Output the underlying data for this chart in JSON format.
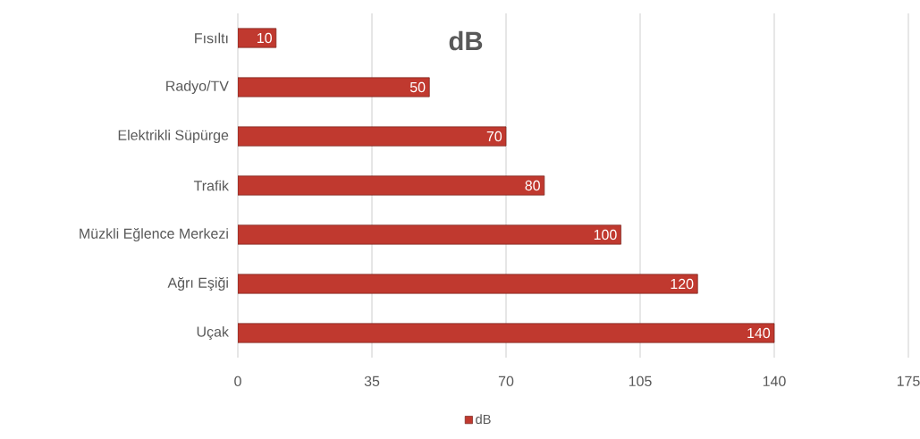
{
  "chart_data": {
    "type": "bar",
    "orientation": "horizontal",
    "title": "dB",
    "categories": [
      "Fısıltı",
      "Radyo/TV",
      "Elektrikli Süpürge",
      "Trafik",
      "Müzkli Eğlence Merkezi",
      "Ağrı Eşiği",
      "Uçak"
    ],
    "series": [
      {
        "name": "dB",
        "color": "#c0392f",
        "values": [
          10,
          50,
          70,
          80,
          100,
          120,
          140
        ]
      }
    ],
    "xlim": [
      0,
      175
    ],
    "xticks": [
      0,
      35,
      70,
      105,
      140,
      175
    ],
    "grid": "x",
    "legend": "bottom",
    "data_labels": true
  }
}
